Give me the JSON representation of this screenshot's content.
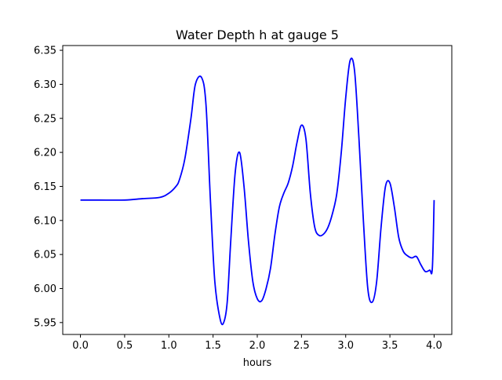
{
  "chart_data": {
    "type": "line",
    "title": "Water Depth h at gauge 5",
    "xlabel": "hours",
    "ylabel": "",
    "xlim": [
      -0.2,
      4.2
    ],
    "ylim": [
      5.9325,
      6.357
    ],
    "x_ticks": [
      0.0,
      0.5,
      1.0,
      1.5,
      2.0,
      2.5,
      3.0,
      3.5,
      4.0
    ],
    "x_tick_labels": [
      "0.0",
      "0.5",
      "1.0",
      "1.5",
      "2.0",
      "2.5",
      "3.0",
      "3.5",
      "4.0"
    ],
    "y_ticks": [
      5.95,
      6.0,
      6.05,
      6.1,
      6.15,
      6.2,
      6.25,
      6.3,
      6.35
    ],
    "y_tick_labels": [
      "5.95",
      "6.00",
      "6.05",
      "6.10",
      "6.15",
      "6.20",
      "6.25",
      "6.30",
      "6.35"
    ],
    "grid": false,
    "legend": "none",
    "series": [
      {
        "color": "#0000ff",
        "x": [
          0.0,
          0.2,
          0.5,
          0.7,
          0.9,
          1.0,
          1.08,
          1.12,
          1.18,
          1.25,
          1.3,
          1.37,
          1.42,
          1.47,
          1.52,
          1.58,
          1.62,
          1.66,
          1.7,
          1.75,
          1.8,
          1.85,
          1.9,
          1.95,
          2.0,
          2.05,
          2.1,
          2.15,
          2.2,
          2.25,
          2.3,
          2.35,
          2.4,
          2.45,
          2.5,
          2.55,
          2.6,
          2.65,
          2.7,
          2.75,
          2.8,
          2.85,
          2.9,
          2.95,
          3.0,
          3.05,
          3.1,
          3.15,
          3.2,
          3.25,
          3.3,
          3.35,
          3.4,
          3.45,
          3.5,
          3.55,
          3.6,
          3.65,
          3.7,
          3.75,
          3.8,
          3.85,
          3.9,
          3.95,
          3.98,
          4.0
        ],
        "y": [
          6.13,
          6.13,
          6.13,
          6.132,
          6.134,
          6.14,
          6.15,
          6.16,
          6.19,
          6.25,
          6.3,
          6.31,
          6.27,
          6.13,
          6.01,
          5.955,
          5.95,
          5.98,
          6.07,
          6.17,
          6.2,
          6.15,
          6.07,
          6.01,
          5.985,
          5.982,
          6.0,
          6.03,
          6.08,
          6.12,
          6.14,
          6.155,
          6.18,
          6.215,
          6.24,
          6.22,
          6.14,
          6.09,
          6.078,
          6.08,
          6.09,
          6.11,
          6.14,
          6.2,
          6.28,
          6.335,
          6.32,
          6.22,
          6.1,
          6.0,
          5.98,
          6.01,
          6.09,
          6.15,
          6.155,
          6.12,
          6.075,
          6.055,
          6.048,
          6.045,
          6.047,
          6.035,
          6.025,
          6.027,
          6.03,
          6.13
        ]
      }
    ]
  }
}
